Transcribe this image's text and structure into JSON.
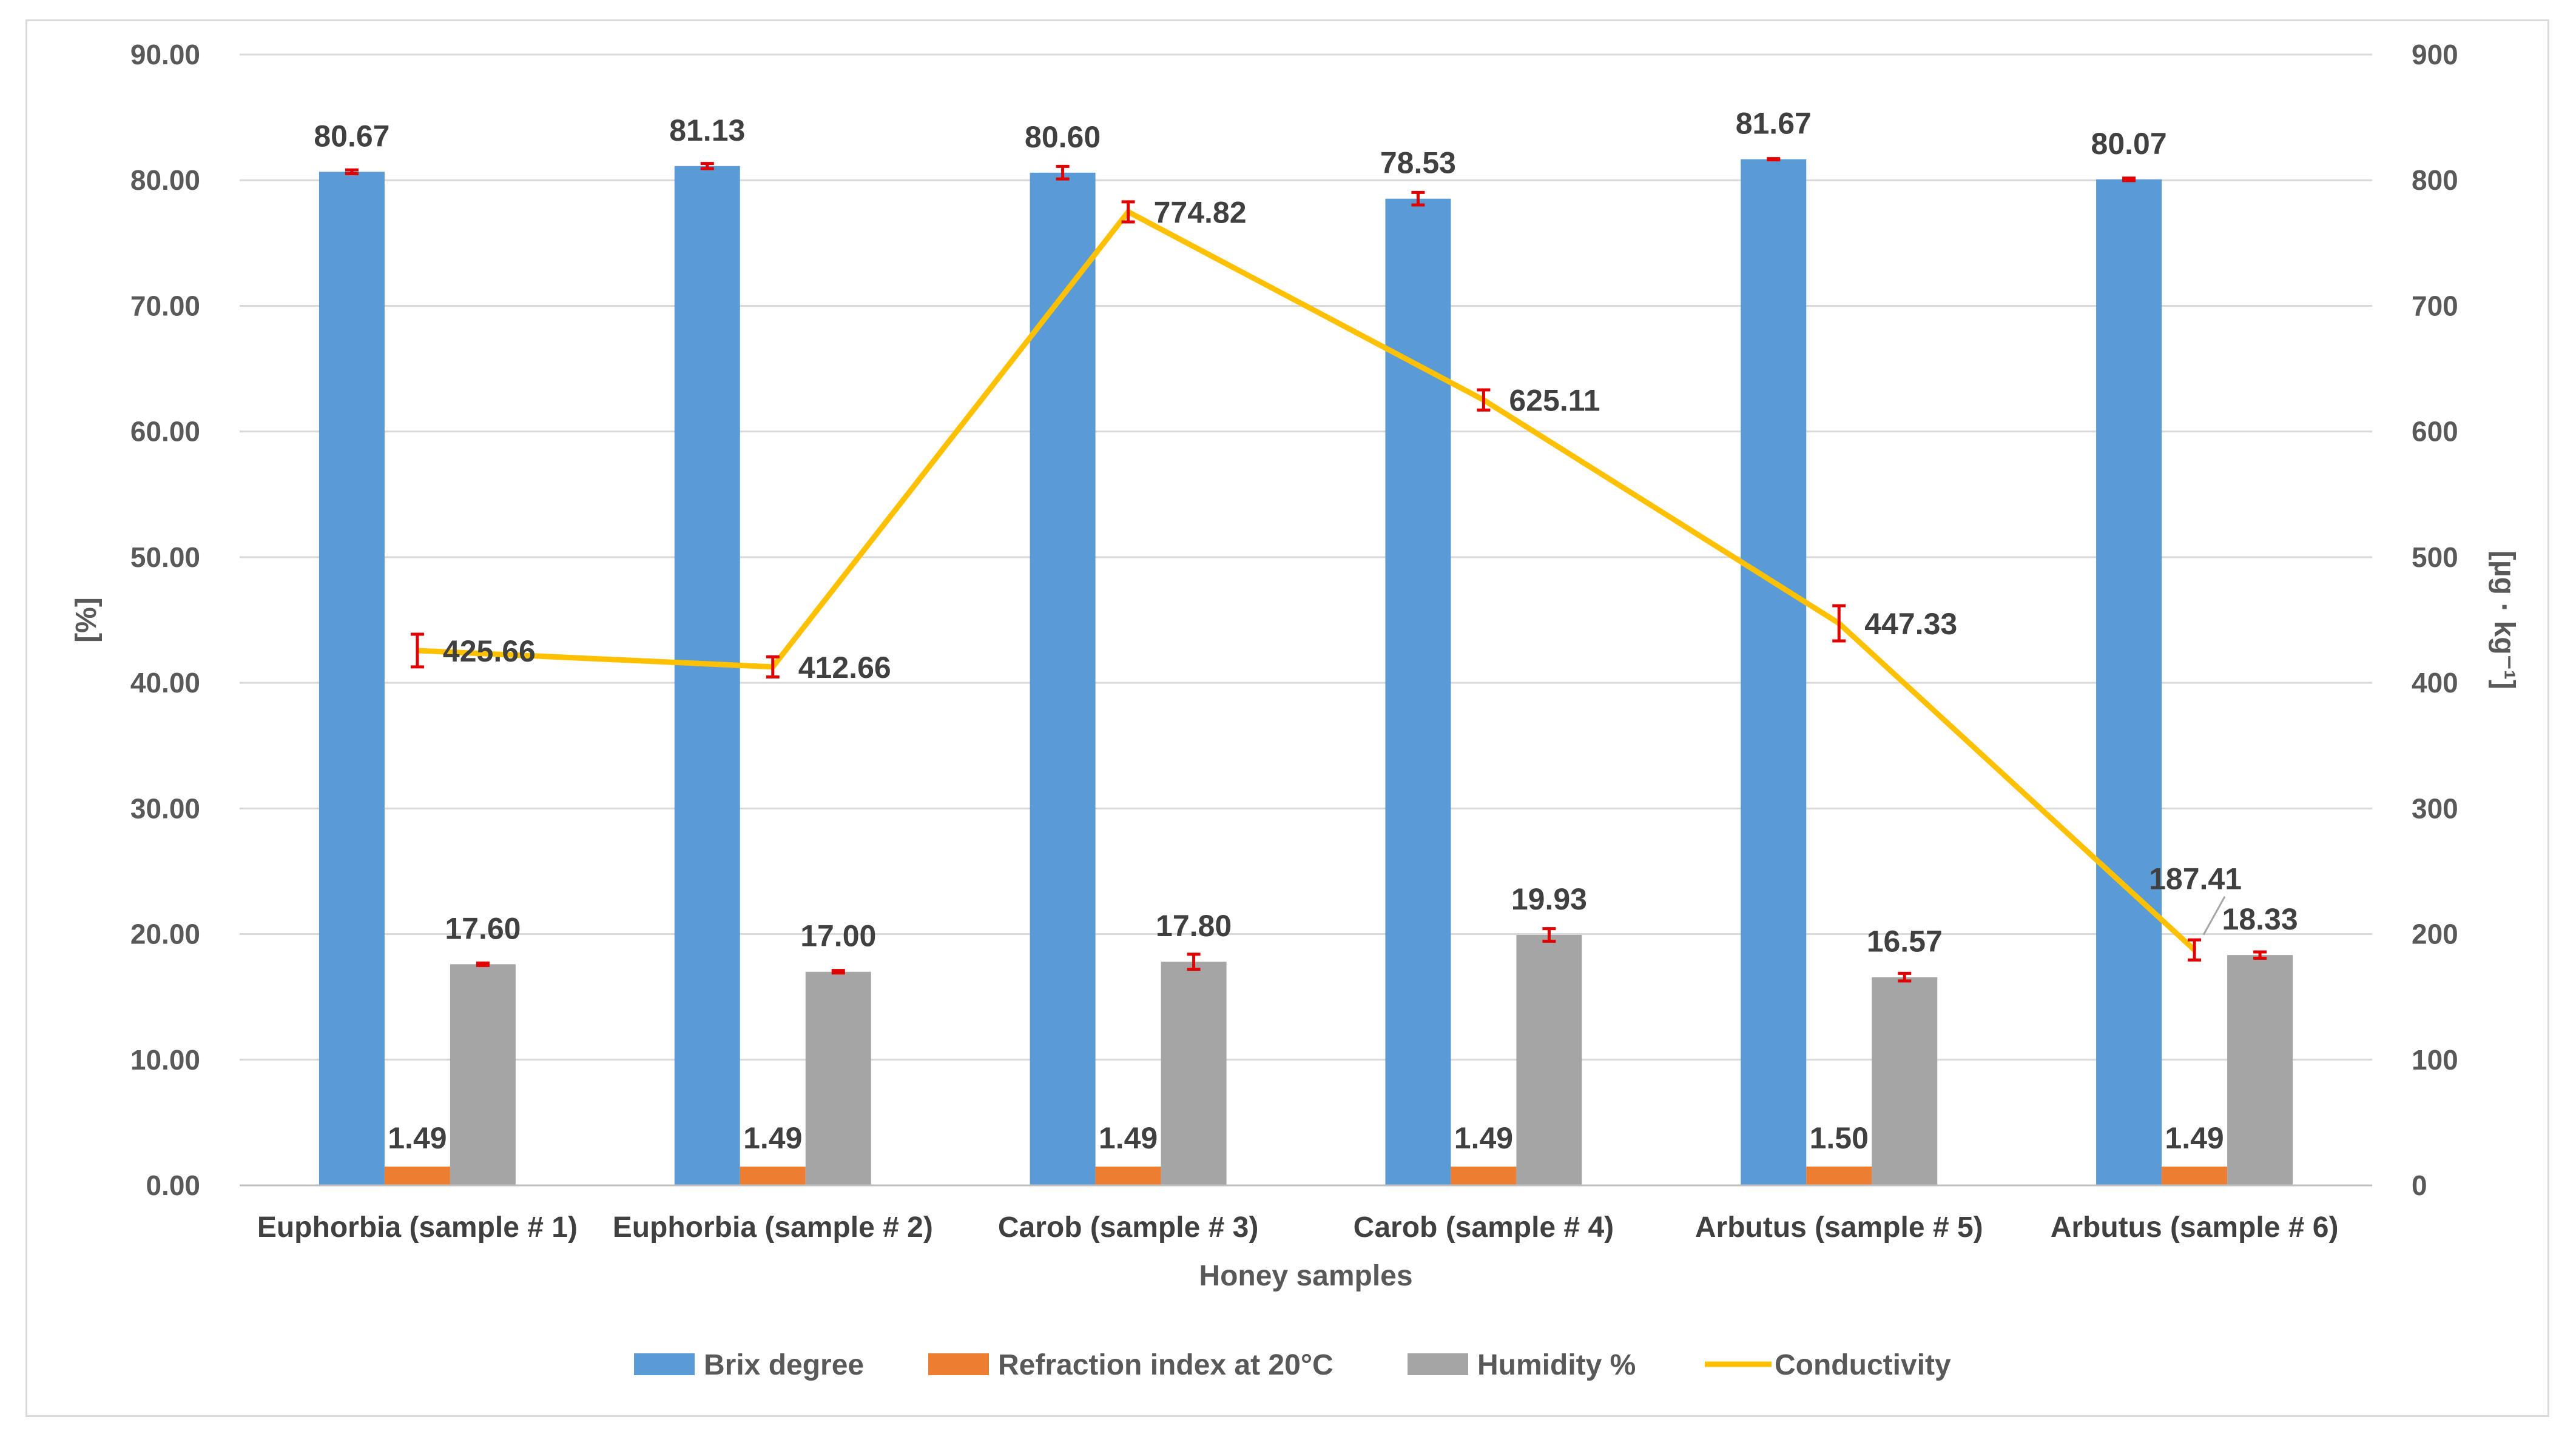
{
  "chart_data": {
    "type": "bar",
    "xlabel": "Honey samples",
    "ylabel": "[%]",
    "y2label": "[µg · kg⁻¹]",
    "ylim": [
      0,
      90
    ],
    "y2lim": [
      0,
      900
    ],
    "grid": true,
    "legend_position": "bottom",
    "y_ticks": [
      "0.00",
      "10.00",
      "20.00",
      "30.00",
      "40.00",
      "50.00",
      "60.00",
      "70.00",
      "80.00",
      "90.00"
    ],
    "y2_ticks": [
      "0",
      "100",
      "200",
      "300",
      "400",
      "500",
      "600",
      "700",
      "800",
      "900"
    ],
    "categories": [
      "Euphorbia (sample # 1)",
      "Euphorbia (sample # 2)",
      "Carob (sample # 3)",
      "Carob (sample # 4)",
      "Arbutus (sample # 5)",
      "Arbutus (sample # 6)"
    ],
    "series": [
      {
        "name": "Brix  degree",
        "type": "bar",
        "axis": "left",
        "color": "#5b9bd5",
        "values": [
          80.67,
          81.13,
          80.6,
          78.53,
          81.67,
          80.07
        ],
        "labels": [
          "80.67",
          "81.13",
          "80.60",
          "78.53",
          "81.67",
          "80.07"
        ],
        "errors": [
          0.15,
          0.2,
          0.5,
          0.5,
          0.05,
          0.1
        ]
      },
      {
        "name": "Refraction index at 20°C",
        "type": "bar",
        "axis": "left",
        "color": "#ed7d31",
        "values": [
          1.49,
          1.49,
          1.49,
          1.49,
          1.5,
          1.49
        ],
        "labels": [
          "1.49",
          "1.49",
          "1.49",
          "1.49",
          "1.50",
          "1.49"
        ],
        "errors": [
          0,
          0,
          0,
          0,
          0,
          0
        ]
      },
      {
        "name": "Humidity %",
        "type": "bar",
        "axis": "left",
        "color": "#a5a5a5",
        "values": [
          17.6,
          17.0,
          17.8,
          19.93,
          16.57,
          18.33
        ],
        "labels": [
          "17.60",
          "17.00",
          "17.80",
          "19.93",
          "16.57",
          "18.33"
        ],
        "errors": [
          0.1,
          0.1,
          0.6,
          0.5,
          0.3,
          0.25
        ]
      },
      {
        "name": "Conductivity",
        "type": "line",
        "axis": "right",
        "color": "#ffc000",
        "values": [
          425.66,
          412.66,
          774.82,
          625.11,
          447.33,
          187.41
        ],
        "labels": [
          "425.66",
          "412.66",
          "774.82",
          "625.11",
          "447.33",
          "187.41"
        ],
        "errors": [
          13,
          8,
          8,
          8,
          14,
          8
        ]
      }
    ],
    "error_bar_color": "#e00000"
  }
}
